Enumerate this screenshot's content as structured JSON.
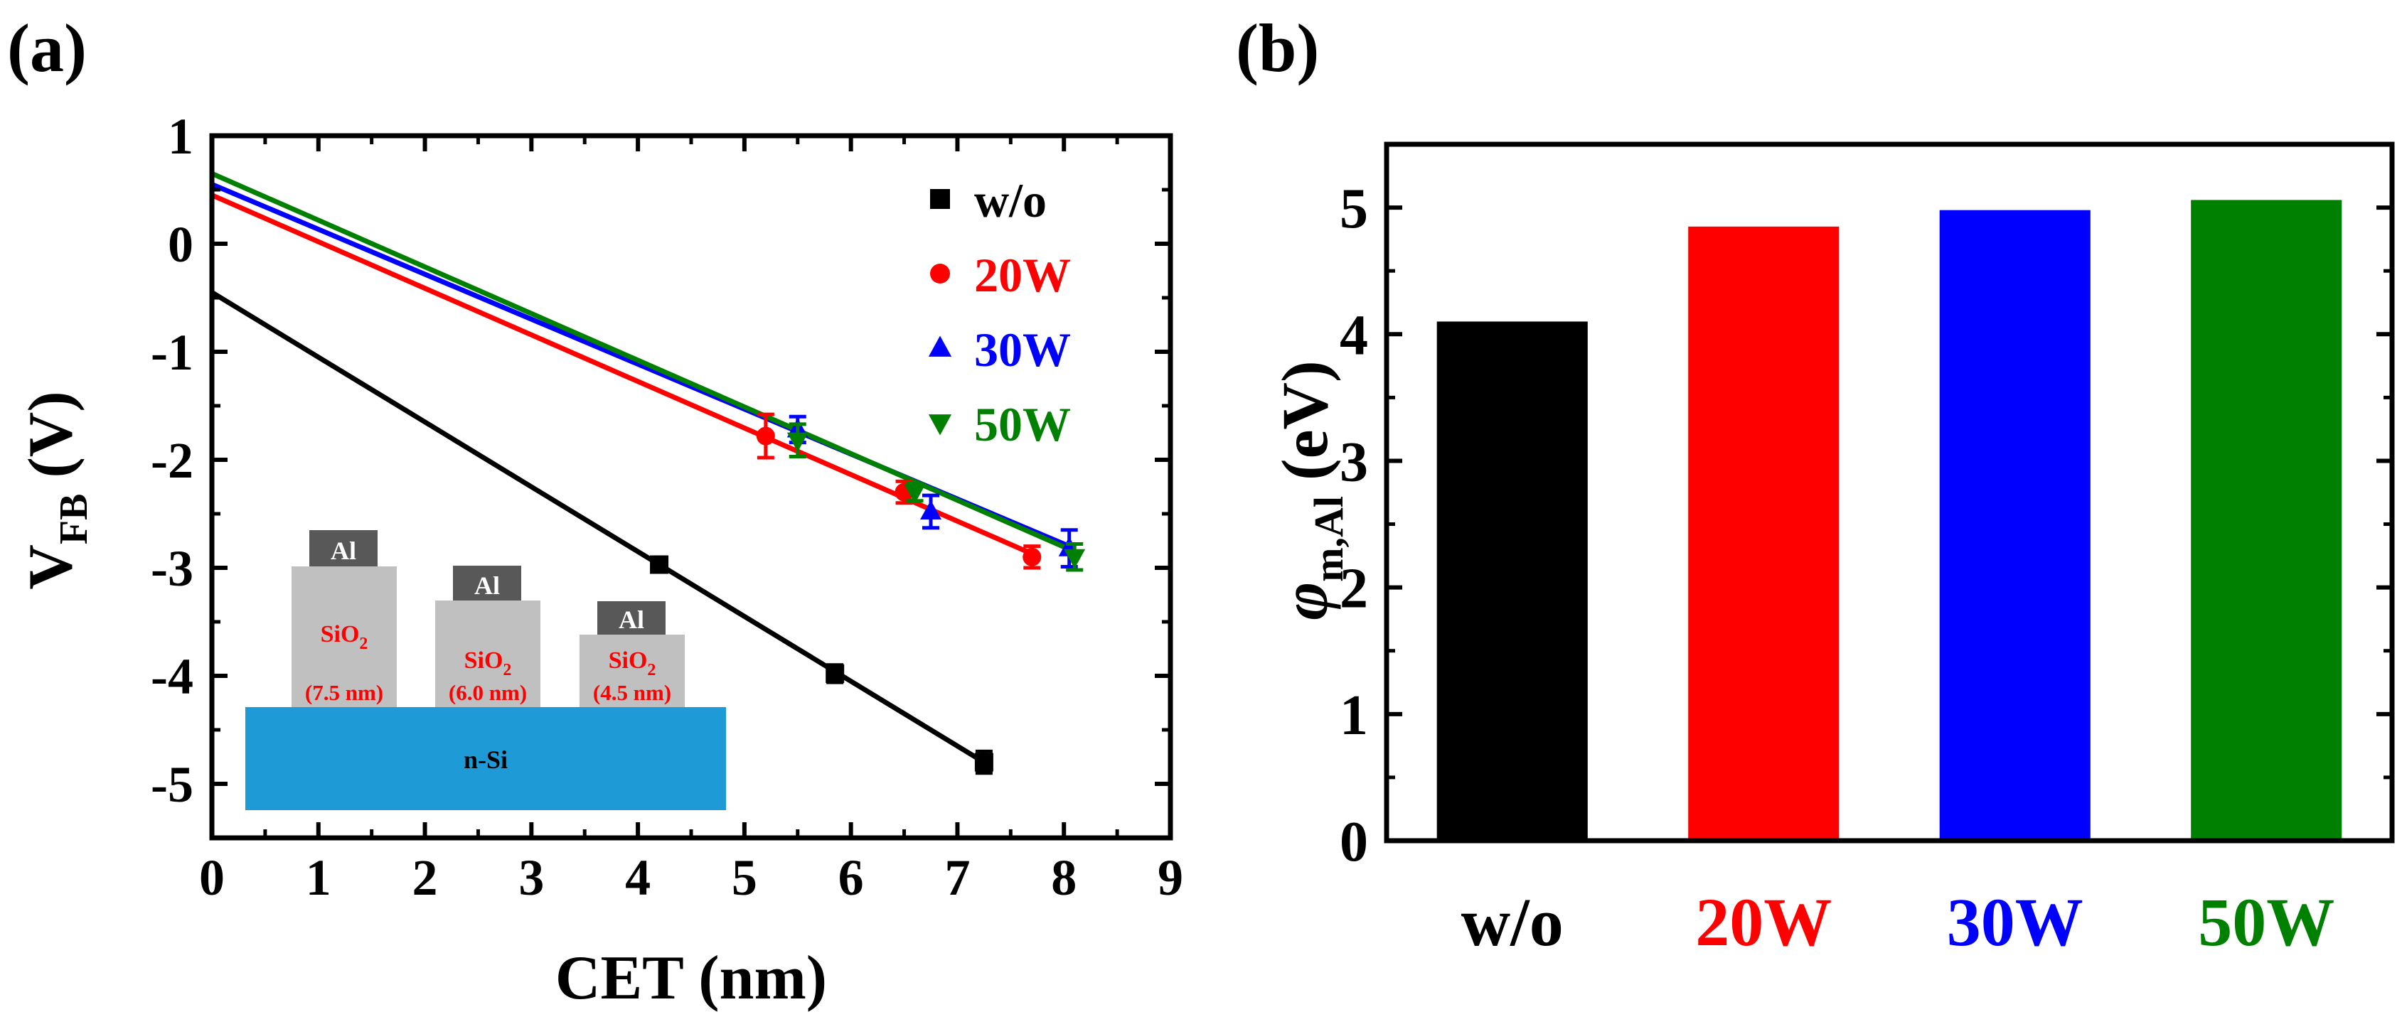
{
  "colors": {
    "black": "#000000",
    "red": "#ff0000",
    "blue": "#0000ff",
    "green": "#008000",
    "substrate": "#1e9bd7",
    "oxide": "#c0c0c0",
    "metal": "#585858"
  },
  "chart_data": [
    {
      "panel_label": "(a)",
      "type": "scatter",
      "xlabel": "CET (nm)",
      "ylabel_main": "V",
      "ylabel_sub": "FB",
      "ylabel_unit": "(V)",
      "xlim": [
        0,
        9
      ],
      "ylim": [
        -5.5,
        1
      ],
      "xticks": [
        0,
        1,
        2,
        3,
        4,
        5,
        6,
        7,
        8,
        9
      ],
      "yticks": [
        -5,
        -4,
        -3,
        -2,
        -1,
        0,
        1
      ],
      "legend_position": "top-right",
      "series": [
        {
          "name": "w/o",
          "marker": "square",
          "color": "#000000",
          "points": [
            {
              "x": 4.2,
              "y": -2.97,
              "err": 0.05
            },
            {
              "x": 5.85,
              "y": -3.98,
              "err": 0.08
            },
            {
              "x": 7.25,
              "y": -4.8,
              "err": 0.1
            }
          ],
          "fit": {
            "x0": 0,
            "y0": -0.45,
            "x1": 7.25,
            "y1": -4.8
          }
        },
        {
          "name": "20W",
          "marker": "circle",
          "color": "#ff0000",
          "points": [
            {
              "x": 5.2,
              "y": -1.78,
              "err": 0.2
            },
            {
              "x": 6.5,
              "y": -2.3,
              "err": 0.1
            },
            {
              "x": 7.7,
              "y": -2.9,
              "err": 0.1
            }
          ],
          "fit": {
            "x0": 0,
            "y0": 0.45,
            "x1": 7.7,
            "y1": -2.87
          }
        },
        {
          "name": "30W",
          "marker": "triangle-up",
          "color": "#0000ff",
          "points": [
            {
              "x": 5.5,
              "y": -1.72,
              "err": 0.12
            },
            {
              "x": 6.75,
              "y": -2.48,
              "err": 0.15
            },
            {
              "x": 8.05,
              "y": -2.82,
              "err": 0.17
            }
          ],
          "fit": {
            "x0": 0,
            "y0": 0.55,
            "x1": 8.05,
            "y1": -2.8
          }
        },
        {
          "name": "50W",
          "marker": "triangle-down",
          "color": "#008000",
          "points": [
            {
              "x": 5.5,
              "y": -1.82,
              "err": 0.15
            },
            {
              "x": 6.6,
              "y": -2.3,
              "err": 0.08
            },
            {
              "x": 8.1,
              "y": -2.9,
              "err": 0.12
            }
          ],
          "fit": {
            "x0": 0,
            "y0": 0.65,
            "x1": 8.1,
            "y1": -2.85
          }
        }
      ],
      "inset": {
        "substrate_label": "n-Si",
        "metal_label": "Al",
        "oxide_label": "SiO",
        "oxide_subscript": "2",
        "thicknesses": [
          "(7.5 nm)",
          "(6.0 nm)",
          "(4.5 nm)"
        ]
      }
    },
    {
      "panel_label": "(b)",
      "type": "bar",
      "categories": [
        "w/o",
        "20W",
        "30W",
        "50W"
      ],
      "values": [
        4.1,
        4.85,
        4.98,
        5.06
      ],
      "bar_colors": [
        "#000000",
        "#ff0000",
        "#0000ff",
        "#008000"
      ],
      "ylabel_symbol": "φ",
      "ylabel_sub": "m,Al",
      "ylabel_unit": "(eV)",
      "ylim": [
        0,
        5.5
      ],
      "yticks": [
        0,
        1,
        2,
        3,
        4,
        5
      ],
      "xlabel": ""
    }
  ]
}
